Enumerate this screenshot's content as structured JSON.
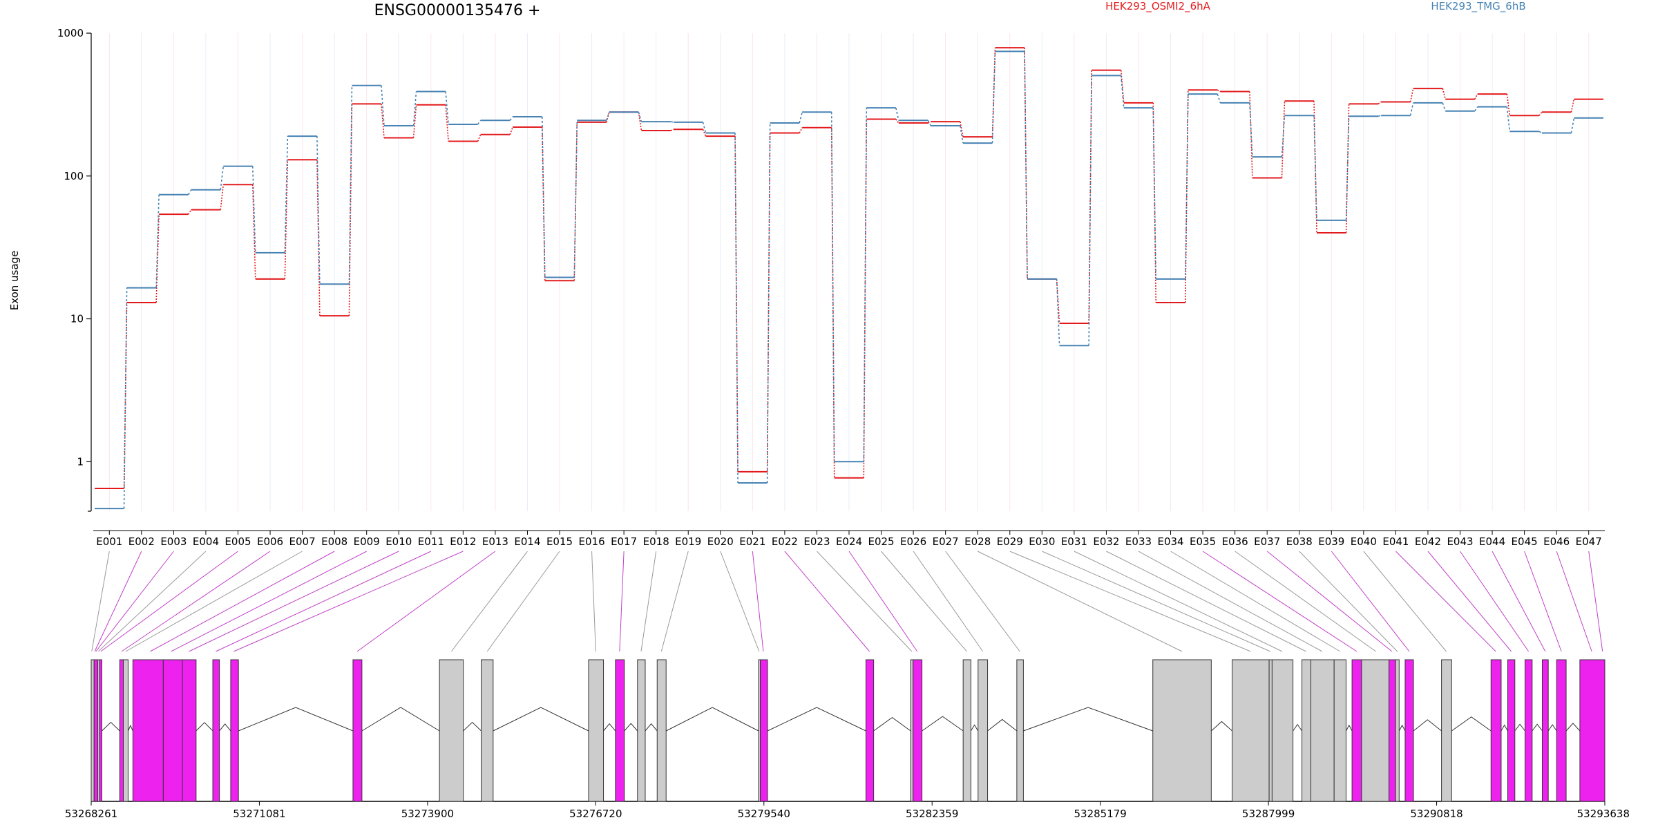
{
  "chart_data": {
    "type": "line",
    "title": "ENSG00000135476 +",
    "ylabel": "Exon usage",
    "xlabel": "",
    "yscale": "log",
    "ylim": [
      0.45,
      1000
    ],
    "yticks": [
      1,
      10,
      100,
      1000
    ],
    "ytick_labels": [
      "1",
      "10",
      "100",
      "1000"
    ],
    "grid": "vertical",
    "legend_placement": "top",
    "categories": [
      "E001",
      "E002",
      "E003",
      "E004",
      "E005",
      "E006",
      "E007",
      "E008",
      "E009",
      "E010",
      "E011",
      "E012",
      "E013",
      "E014",
      "E015",
      "E016",
      "E017",
      "E018",
      "E019",
      "E020",
      "E021",
      "E022",
      "E023",
      "E024",
      "E025",
      "E026",
      "E027",
      "E028",
      "E029",
      "E030",
      "E031",
      "E032",
      "E033",
      "E034",
      "E035",
      "E036",
      "E037",
      "E038",
      "E039",
      "E040",
      "E041",
      "E042",
      "E043",
      "E044",
      "E045",
      "E046",
      "E047"
    ],
    "series": [
      {
        "name": "HEK293_OSMI2_6hA",
        "color": "#e31a1c",
        "values": [
          0.65,
          13,
          54,
          58,
          87,
          19,
          130,
          10.5,
          320,
          185,
          315,
          175,
          195,
          220,
          18.5,
          238,
          280,
          208,
          212,
          190,
          0.85,
          200,
          218,
          0.77,
          250,
          235,
          240,
          188,
          790,
          19,
          9.3,
          550,
          325,
          13,
          400,
          390,
          97,
          335,
          40,
          320,
          330,
          410,
          345,
          375,
          265,
          280,
          345
        ]
      },
      {
        "name": "HEK293_TMG_6hB",
        "color": "#4682b4",
        "values": [
          0.47,
          16.5,
          74,
          80,
          117,
          29,
          190,
          17.5,
          430,
          225,
          390,
          230,
          245,
          260,
          19.5,
          245,
          280,
          240,
          238,
          200,
          0.71,
          235,
          280,
          1.0,
          300,
          245,
          225,
          170,
          745,
          19,
          6.5,
          505,
          300,
          19,
          375,
          325,
          136,
          265,
          49,
          262,
          265,
          325,
          285,
          305,
          205,
          200,
          255
        ]
      }
    ],
    "gene_model": {
      "genomic_tick_labels": [
        "53268261",
        "53271081",
        "53273900",
        "53276720",
        "53279540",
        "53282359",
        "53285179",
        "53287999",
        "53290818",
        "53293638"
      ],
      "genomic_range": [
        53268261,
        53293638
      ],
      "highlight_color": "#ee22ee",
      "plain_color": "#cccccc",
      "blocks": [
        {
          "start": 53268261,
          "end": 53268310,
          "highlight": false
        },
        {
          "start": 53268310,
          "end": 53268370,
          "highlight": true
        },
        {
          "start": 53268370,
          "end": 53268400,
          "highlight": false
        },
        {
          "start": 53268400,
          "end": 53268440,
          "highlight": true
        },
        {
          "start": 53268740,
          "end": 53268800,
          "highlight": true
        },
        {
          "start": 53268800,
          "end": 53268880,
          "highlight": false
        },
        {
          "start": 53268960,
          "end": 53269470,
          "highlight": true
        },
        {
          "start": 53269470,
          "end": 53269790,
          "highlight": true
        },
        {
          "start": 53269790,
          "end": 53270020,
          "highlight": true
        },
        {
          "start": 53270300,
          "end": 53270410,
          "highlight": true
        },
        {
          "start": 53270600,
          "end": 53270730,
          "highlight": true
        },
        {
          "start": 53272650,
          "end": 53272800,
          "highlight": true
        },
        {
          "start": 53274100,
          "end": 53274500,
          "highlight": false
        },
        {
          "start": 53274800,
          "end": 53275000,
          "highlight": false
        },
        {
          "start": 53276600,
          "end": 53276850,
          "highlight": false
        },
        {
          "start": 53277050,
          "end": 53277200,
          "highlight": true
        },
        {
          "start": 53277420,
          "end": 53277550,
          "highlight": false
        },
        {
          "start": 53277750,
          "end": 53277900,
          "highlight": false
        },
        {
          "start": 53279450,
          "end": 53279480,
          "highlight": false
        },
        {
          "start": 53279480,
          "end": 53279600,
          "highlight": true
        },
        {
          "start": 53281250,
          "end": 53281380,
          "highlight": true
        },
        {
          "start": 53282000,
          "end": 53282040,
          "highlight": false
        },
        {
          "start": 53282040,
          "end": 53282190,
          "highlight": true
        },
        {
          "start": 53282880,
          "end": 53283010,
          "highlight": false
        },
        {
          "start": 53283130,
          "end": 53283290,
          "highlight": false
        },
        {
          "start": 53283780,
          "end": 53283890,
          "highlight": false
        },
        {
          "start": 53286060,
          "end": 53287040,
          "highlight": false
        },
        {
          "start": 53287390,
          "end": 53288010,
          "highlight": false
        },
        {
          "start": 53288010,
          "end": 53288060,
          "highlight": false
        },
        {
          "start": 53288060,
          "end": 53288410,
          "highlight": false
        },
        {
          "start": 53288560,
          "end": 53288710,
          "highlight": false
        },
        {
          "start": 53288710,
          "end": 53289100,
          "highlight": false
        },
        {
          "start": 53289100,
          "end": 53289300,
          "highlight": false
        },
        {
          "start": 53289400,
          "end": 53289560,
          "highlight": true
        },
        {
          "start": 53289560,
          "end": 53290020,
          "highlight": false
        },
        {
          "start": 53290020,
          "end": 53290130,
          "highlight": true
        },
        {
          "start": 53290130,
          "end": 53290190,
          "highlight": false
        },
        {
          "start": 53290290,
          "end": 53290430,
          "highlight": true
        },
        {
          "start": 53290900,
          "end": 53291070,
          "highlight": false
        },
        {
          "start": 53291730,
          "end": 53291900,
          "highlight": true
        },
        {
          "start": 53292010,
          "end": 53292130,
          "highlight": true
        },
        {
          "start": 53292300,
          "end": 53292420,
          "highlight": true
        },
        {
          "start": 53292590,
          "end": 53292690,
          "highlight": true
        },
        {
          "start": 53292830,
          "end": 53292990,
          "highlight": true
        },
        {
          "start": 53293220,
          "end": 53293638,
          "highlight": true
        }
      ],
      "links": [
        {
          "exon": "E001",
          "pos": 53268270,
          "highlight": false
        },
        {
          "exon": "E002",
          "pos": 53268320,
          "highlight": true
        },
        {
          "exon": "E003",
          "pos": 53268340,
          "highlight": true
        },
        {
          "exon": "E004",
          "pos": 53268380,
          "highlight": false
        },
        {
          "exon": "E005",
          "pos": 53268420,
          "highlight": true
        },
        {
          "exon": "E006",
          "pos": 53268770,
          "highlight": true
        },
        {
          "exon": "E007",
          "pos": 53268840,
          "highlight": false
        },
        {
          "exon": "E008",
          "pos": 53269250,
          "highlight": true
        },
        {
          "exon": "E009",
          "pos": 53269600,
          "highlight": true
        },
        {
          "exon": "E010",
          "pos": 53269900,
          "highlight": true
        },
        {
          "exon": "E011",
          "pos": 53270350,
          "highlight": true
        },
        {
          "exon": "E012",
          "pos": 53270650,
          "highlight": true
        },
        {
          "exon": "E013",
          "pos": 53272720,
          "highlight": true
        },
        {
          "exon": "E014",
          "pos": 53274300,
          "highlight": false
        },
        {
          "exon": "E015",
          "pos": 53274900,
          "highlight": false
        },
        {
          "exon": "E016",
          "pos": 53276720,
          "highlight": false
        },
        {
          "exon": "E017",
          "pos": 53277120,
          "highlight": true
        },
        {
          "exon": "E018",
          "pos": 53277480,
          "highlight": false
        },
        {
          "exon": "E019",
          "pos": 53277820,
          "highlight": false
        },
        {
          "exon": "E020",
          "pos": 53279460,
          "highlight": false
        },
        {
          "exon": "E021",
          "pos": 53279530,
          "highlight": true
        },
        {
          "exon": "E022",
          "pos": 53281310,
          "highlight": true
        },
        {
          "exon": "E023",
          "pos": 53282020,
          "highlight": false
        },
        {
          "exon": "E024",
          "pos": 53282110,
          "highlight": true
        },
        {
          "exon": "E025",
          "pos": 53282940,
          "highlight": false
        },
        {
          "exon": "E026",
          "pos": 53283210,
          "highlight": false
        },
        {
          "exon": "E027",
          "pos": 53283830,
          "highlight": false
        },
        {
          "exon": "E028",
          "pos": 53286550,
          "highlight": false
        },
        {
          "exon": "E029",
          "pos": 53287700,
          "highlight": false
        },
        {
          "exon": "E030",
          "pos": 53288030,
          "highlight": false
        },
        {
          "exon": "E031",
          "pos": 53288230,
          "highlight": false
        },
        {
          "exon": "E032",
          "pos": 53288630,
          "highlight": false
        },
        {
          "exon": "E033",
          "pos": 53288900,
          "highlight": false
        },
        {
          "exon": "E034",
          "pos": 53289200,
          "highlight": false
        },
        {
          "exon": "E035",
          "pos": 53289480,
          "highlight": true
        },
        {
          "exon": "E036",
          "pos": 53289800,
          "highlight": false
        },
        {
          "exon": "E037",
          "pos": 53290070,
          "highlight": true
        },
        {
          "exon": "E038",
          "pos": 53290160,
          "highlight": false
        },
        {
          "exon": "E039",
          "pos": 53290360,
          "highlight": true
        },
        {
          "exon": "E040",
          "pos": 53290980,
          "highlight": false
        },
        {
          "exon": "E041",
          "pos": 53291810,
          "highlight": true
        },
        {
          "exon": "E042",
          "pos": 53292070,
          "highlight": true
        },
        {
          "exon": "E043",
          "pos": 53292360,
          "highlight": true
        },
        {
          "exon": "E044",
          "pos": 53292640,
          "highlight": true
        },
        {
          "exon": "E045",
          "pos": 53292910,
          "highlight": true
        },
        {
          "exon": "E046",
          "pos": 53293420,
          "highlight": true
        },
        {
          "exon": "E047",
          "pos": 53293600,
          "highlight": true
        }
      ]
    }
  }
}
